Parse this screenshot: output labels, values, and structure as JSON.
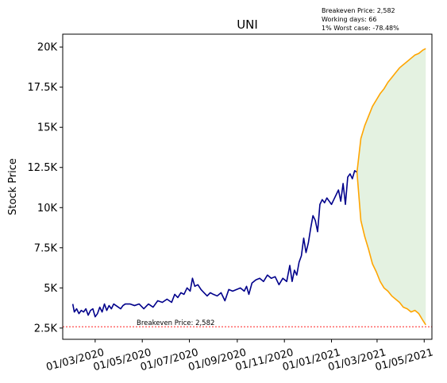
{
  "chart_data": {
    "type": "line",
    "title": "UNI",
    "ylabel": "Stock Price",
    "xlabel": "",
    "x_tick_labels": [
      "01/03/2020",
      "01/05/2020",
      "01/07/2020",
      "01/09/2020",
      "01/11/2020",
      "01/01/2021",
      "01/03/2021",
      "01/05/2021"
    ],
    "x_tick_dates": [
      "2020-03-01",
      "2020-05-01",
      "2020-07-01",
      "2020-09-01",
      "2020-11-01",
      "2021-01-01",
      "2021-03-01",
      "2021-05-01"
    ],
    "xlim": [
      "2020-01-19",
      "2021-05-11"
    ],
    "y_tick_labels": [
      "2.5K",
      "5K",
      "7.5K",
      "10K",
      "12.5K",
      "15K",
      "17.5K",
      "20K"
    ],
    "y_ticks": [
      2500,
      5000,
      7500,
      10000,
      12500,
      15000,
      17500,
      20000
    ],
    "ylim": [
      1800,
      20800
    ],
    "grid": false,
    "info_box": [
      "Breakeven Price: 2,582",
      "Working days: 66",
      "1% Worst case: -78.48%"
    ],
    "breakeven": {
      "value": 2582,
      "label": "Breakeven Price: 2,582",
      "color": "#ff0000"
    },
    "history": {
      "color": "#00008b",
      "x": [
        "2020-02-01",
        "2020-02-03",
        "2020-02-06",
        "2020-02-09",
        "2020-02-12",
        "2020-02-15",
        "2020-02-18",
        "2020-02-21",
        "2020-02-24",
        "2020-02-27",
        "2020-03-01",
        "2020-03-04",
        "2020-03-07",
        "2020-03-10",
        "2020-03-13",
        "2020-03-16",
        "2020-03-19",
        "2020-03-22",
        "2020-03-25",
        "2020-03-28",
        "2020-03-31",
        "2020-04-03",
        "2020-04-06",
        "2020-04-09",
        "2020-04-15",
        "2020-04-21",
        "2020-04-27",
        "2020-05-03",
        "2020-05-09",
        "2020-05-15",
        "2020-05-21",
        "2020-05-27",
        "2020-06-02",
        "2020-06-08",
        "2020-06-12",
        "2020-06-16",
        "2020-06-20",
        "2020-06-24",
        "2020-06-28",
        "2020-07-02",
        "2020-07-05",
        "2020-07-08",
        "2020-07-12",
        "2020-07-16",
        "2020-07-20",
        "2020-07-24",
        "2020-07-28",
        "2020-08-01",
        "2020-08-06",
        "2020-08-11",
        "2020-08-16",
        "2020-08-21",
        "2020-08-26",
        "2020-08-31",
        "2020-09-05",
        "2020-09-10",
        "2020-09-13",
        "2020-09-16",
        "2020-09-20",
        "2020-09-25",
        "2020-09-30",
        "2020-10-05",
        "2020-10-10",
        "2020-10-15",
        "2020-10-20",
        "2020-10-25",
        "2020-10-30",
        "2020-11-04",
        "2020-11-08",
        "2020-11-11",
        "2020-11-14",
        "2020-11-17",
        "2020-11-20",
        "2020-11-23",
        "2020-11-26",
        "2020-11-29",
        "2020-12-02",
        "2020-12-05",
        "2020-12-08",
        "2020-12-11",
        "2020-12-14",
        "2020-12-17",
        "2020-12-20",
        "2020-12-23",
        "2020-12-26",
        "2020-12-29",
        "2021-01-01",
        "2021-01-04",
        "2021-01-07",
        "2021-01-10",
        "2021-01-13",
        "2021-01-16",
        "2021-01-19",
        "2021-01-22",
        "2021-01-25",
        "2021-01-28",
        "2021-01-31",
        "2021-02-03"
      ],
      "y": [
        4000,
        3500,
        3700,
        3400,
        3600,
        3500,
        3700,
        3300,
        3600,
        3700,
        3200,
        3400,
        3800,
        3500,
        4000,
        3600,
        3900,
        3700,
        4000,
        3900,
        3800,
        3700,
        3900,
        4000,
        4000,
        3900,
        4000,
        3700,
        4000,
        3800,
        4200,
        4100,
        4300,
        4100,
        4600,
        4400,
        4700,
        4600,
        5000,
        4800,
        5600,
        5100,
        5200,
        4900,
        4700,
        4500,
        4700,
        4600,
        4500,
        4700,
        4200,
        4900,
        4800,
        4900,
        5000,
        4800,
        5100,
        4600,
        5300,
        5500,
        5600,
        5400,
        5800,
        5600,
        5700,
        5200,
        5600,
        5400,
        6400,
        5400,
        6100,
        5800,
        6600,
        7000,
        8100,
        7200,
        7800,
        8700,
        9500,
        9200,
        8500,
        10200,
        10500,
        10300,
        10600,
        10400,
        10200,
        10500,
        10800,
        11100,
        10400,
        11500,
        10200,
        11900,
        12100,
        11800,
        12300,
        12200
      ]
    },
    "forecast_upper": {
      "color": "#ffa500",
      "x": [
        "2021-02-03",
        "2021-02-08",
        "2021-02-13",
        "2021-02-18",
        "2021-02-23",
        "2021-02-28",
        "2021-03-05",
        "2021-03-10",
        "2021-03-15",
        "2021-03-20",
        "2021-03-25",
        "2021-03-30",
        "2021-04-04",
        "2021-04-09",
        "2021-04-14",
        "2021-04-19",
        "2021-04-24",
        "2021-04-29",
        "2021-05-03"
      ],
      "y": [
        12200,
        14300,
        15100,
        15700,
        16300,
        16700,
        17100,
        17400,
        17800,
        18100,
        18400,
        18700,
        18900,
        19100,
        19300,
        19500,
        19600,
        19800,
        19900
      ]
    },
    "forecast_lower": {
      "color": "#ffa500",
      "x": [
        "2021-02-03",
        "2021-02-08",
        "2021-02-13",
        "2021-02-18",
        "2021-02-23",
        "2021-02-28",
        "2021-03-05",
        "2021-03-10",
        "2021-03-15",
        "2021-03-20",
        "2021-03-25",
        "2021-03-30",
        "2021-04-04",
        "2021-04-09",
        "2021-04-14",
        "2021-04-19",
        "2021-04-24",
        "2021-04-29",
        "2021-05-03"
      ],
      "y": [
        12200,
        9200,
        8200,
        7400,
        6500,
        6000,
        5400,
        5000,
        4800,
        4500,
        4300,
        4100,
        3800,
        3700,
        3500,
        3600,
        3400,
        3000,
        2700
      ]
    },
    "fill_color": "#d8ecd4"
  }
}
